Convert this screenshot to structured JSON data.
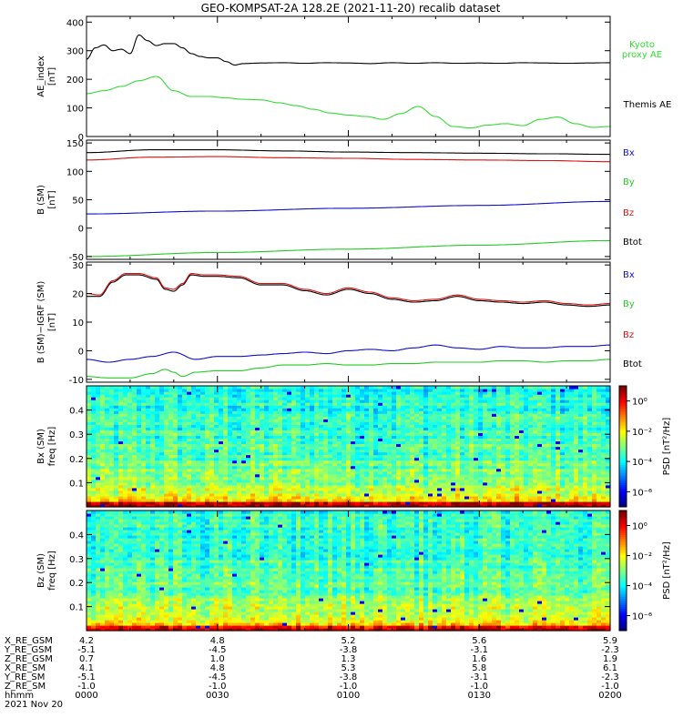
{
  "title": "GEO-KOMPSAT-2A 128.2E (2021-11-20) recalib dataset",
  "colors": {
    "black": "#000000",
    "green": "#22cc22",
    "red": "#dd1111",
    "blue": "#1010c8",
    "kyoto": "#33dd33"
  },
  "chart_data": [
    {
      "type": "line",
      "panel": "ae",
      "ylabel": [
        "AE_index",
        "[nT]"
      ],
      "ylim": [
        0,
        420
      ],
      "yticks": [
        0,
        100,
        200,
        300,
        400
      ],
      "xlim": [
        0,
        120
      ],
      "series": [
        {
          "name": "Kyoto proxy AE",
          "color": "kyoto",
          "x": [
            0,
            4,
            8,
            12,
            16,
            20,
            24,
            28,
            32,
            36,
            40,
            44,
            48,
            52,
            56,
            60,
            64,
            68,
            72,
            76,
            80,
            84,
            88,
            92,
            96,
            100,
            104,
            108,
            112,
            116,
            120
          ],
          "y": [
            150,
            160,
            175,
            195,
            210,
            160,
            140,
            140,
            135,
            130,
            128,
            118,
            108,
            95,
            82,
            75,
            70,
            60,
            80,
            105,
            70,
            35,
            30,
            40,
            45,
            38,
            60,
            68,
            45,
            32,
            35
          ]
        },
        {
          "name": "Themis AE",
          "color": "black",
          "x": [
            0,
            2,
            4,
            6,
            8,
            10,
            12,
            14,
            16,
            18,
            20,
            22,
            24,
            26,
            28,
            30,
            32,
            34,
            36,
            40,
            45,
            50,
            55,
            60,
            65,
            70,
            75,
            80,
            85,
            90,
            95,
            100,
            105,
            110,
            115,
            120
          ],
          "y": [
            270,
            310,
            320,
            300,
            305,
            290,
            355,
            335,
            318,
            325,
            325,
            310,
            290,
            280,
            275,
            275,
            262,
            250,
            255,
            257,
            258,
            256,
            258,
            257,
            255,
            258,
            256,
            258,
            256,
            257,
            256,
            258,
            257,
            256,
            257,
            258
          ]
        }
      ],
      "legend": [
        "Kyoto",
        "proxy AE",
        "Themis AE"
      ]
    },
    {
      "type": "line",
      "panel": "b_sm",
      "ylabel": [
        "B (SM)",
        "[nT]"
      ],
      "ylim": [
        -55,
        155
      ],
      "yticks": [
        -50,
        0,
        50,
        100,
        150
      ],
      "xlim": [
        0,
        120
      ],
      "series": [
        {
          "name": "Bx",
          "color": "blue",
          "x": [
            0,
            30,
            60,
            90,
            120
          ],
          "y": [
            25,
            30,
            35,
            40,
            47
          ]
        },
        {
          "name": "By",
          "color": "green",
          "x": [
            0,
            30,
            60,
            90,
            120
          ],
          "y": [
            -50,
            -43,
            -37,
            -30,
            -22
          ]
        },
        {
          "name": "Bz",
          "color": "red",
          "x": [
            0,
            15,
            30,
            45,
            60,
            75,
            90,
            105,
            120
          ],
          "y": [
            120,
            125,
            126,
            124,
            123,
            121,
            120,
            119,
            117
          ]
        },
        {
          "name": "Btot",
          "color": "black",
          "x": [
            0,
            15,
            30,
            45,
            60,
            75,
            90,
            105,
            120
          ],
          "y": [
            133,
            138,
            138,
            136,
            134,
            133,
            132,
            131,
            130
          ]
        }
      ],
      "legend": [
        "Bx",
        "By",
        "Bz",
        "Btot"
      ]
    },
    {
      "type": "line",
      "panel": "b_minus_igrf",
      "ylabel": [
        "B (SM)−IGRF (SM)",
        "[nT]"
      ],
      "ylim": [
        -11,
        31
      ],
      "yticks": [
        -10,
        0,
        10,
        20,
        30
      ],
      "xlim": [
        0,
        120
      ],
      "series": [
        {
          "name": "Btot",
          "color": "black",
          "x": [
            0,
            3,
            6,
            9,
            12,
            16,
            18,
            20,
            22,
            24,
            27,
            30,
            35,
            40,
            45,
            50,
            55,
            60,
            65,
            70,
            75,
            80,
            85,
            90,
            95,
            100,
            105,
            110,
            115,
            120
          ],
          "y": [
            19,
            19,
            24,
            26.5,
            26.5,
            25,
            21.5,
            20.8,
            23,
            26.5,
            26,
            26,
            25.5,
            23,
            23,
            21,
            19.5,
            21.5,
            20,
            18,
            17,
            17.5,
            19,
            17.5,
            17,
            16.5,
            17,
            16,
            15.5,
            16
          ]
        },
        {
          "name": "Bz",
          "color": "red",
          "x": [
            0,
            3,
            6,
            9,
            12,
            16,
            18,
            20,
            22,
            24,
            27,
            30,
            35,
            40,
            45,
            50,
            55,
            60,
            65,
            70,
            75,
            80,
            85,
            90,
            95,
            100,
            105,
            110,
            115,
            120
          ],
          "y": [
            20,
            19.5,
            24.5,
            27,
            27,
            25.5,
            22,
            21.5,
            23.5,
            27,
            26.5,
            26.5,
            26,
            23.5,
            23.5,
            21.5,
            20,
            22,
            20.5,
            18.5,
            17.5,
            18,
            19.5,
            18,
            17.5,
            17,
            17.5,
            16.5,
            16,
            16.5
          ]
        },
        {
          "name": "Bx",
          "color": "blue",
          "x": [
            0,
            5,
            10,
            15,
            20,
            25,
            30,
            35,
            40,
            45,
            50,
            55,
            60,
            65,
            70,
            75,
            80,
            85,
            90,
            95,
            100,
            105,
            110,
            115,
            120
          ],
          "y": [
            -3,
            -4,
            -3,
            -2,
            -0.5,
            -3,
            -2,
            -2,
            -1.5,
            -1,
            -0.5,
            -1,
            0,
            0.5,
            0,
            1,
            2,
            1,
            0.5,
            1.5,
            1,
            1,
            1.5,
            1.5,
            2
          ]
        },
        {
          "name": "By",
          "color": "green",
          "x": [
            0,
            5,
            10,
            15,
            18,
            20,
            22,
            25,
            30,
            35,
            40,
            45,
            50,
            55,
            60,
            65,
            70,
            75,
            80,
            85,
            90,
            95,
            100,
            105,
            110,
            115,
            120
          ],
          "y": [
            -9,
            -9.5,
            -9.5,
            -8,
            -6.5,
            -7.5,
            -9,
            -7.5,
            -7,
            -7,
            -6,
            -5,
            -5,
            -4.5,
            -5,
            -5,
            -4.5,
            -4.5,
            -4,
            -4,
            -4,
            -3.5,
            -3.5,
            -4,
            -3.5,
            -3.5,
            -3
          ]
        }
      ],
      "legend": [
        "Bx",
        "By",
        "Bz",
        "Btot"
      ]
    },
    {
      "type": "heatmap",
      "panel": "bx_spec",
      "ylabel": [
        "Bx (SM)",
        "freq [Hz]"
      ],
      "ylim": [
        0,
        0.5
      ],
      "yticks": [
        0.1,
        0.2,
        0.3,
        0.4
      ],
      "xlim": [
        0,
        120
      ],
      "colorbar": {
        "label": "PSD [nT²/Hz]",
        "ticks": [
          "10⁰",
          "10⁻²",
          "10⁻⁴",
          "10⁻⁶"
        ],
        "range": [
          -7,
          1
        ]
      }
    },
    {
      "type": "heatmap",
      "panel": "bz_spec",
      "ylabel": [
        "Bz (SM)",
        "freq [Hz]"
      ],
      "ylim": [
        0,
        0.5
      ],
      "yticks": [
        0.1,
        0.2,
        0.3,
        0.4
      ],
      "xlim": [
        0,
        120
      ],
      "colorbar": {
        "label": "PSD [nT²/Hz]",
        "ticks": [
          "10⁰",
          "10⁻²",
          "10⁻⁴",
          "10⁻⁶"
        ],
        "range": [
          -7,
          1
        ]
      }
    }
  ],
  "ephemeris": {
    "labels": [
      "X_RE_GSM",
      "Y_RE_GSM",
      "Z_RE_GSM",
      "X_RE_SM",
      "Y_RE_SM",
      "Z_RE_SM",
      "hhmm",
      "2021 Nov 20"
    ],
    "x": [
      0,
      30,
      60,
      90,
      120
    ],
    "columns": [
      [
        "4.2",
        "-5.1",
        "0.7",
        "4.1",
        "-5.1",
        "-1.0",
        "0000"
      ],
      [
        "4.8",
        "-4.5",
        "1.0",
        "4.8",
        "-4.5",
        "-1.0",
        "0030"
      ],
      [
        "5.2",
        "-3.8",
        "1.3",
        "5.3",
        "-3.8",
        "-1.0",
        "0100"
      ],
      [
        "5.6",
        "-3.1",
        "1.6",
        "5.8",
        "-3.1",
        "-1.0",
        "0130"
      ],
      [
        "5.9",
        "-2.3",
        "1.9",
        "6.1",
        "-2.3",
        "-1.0",
        "0200"
      ]
    ]
  }
}
